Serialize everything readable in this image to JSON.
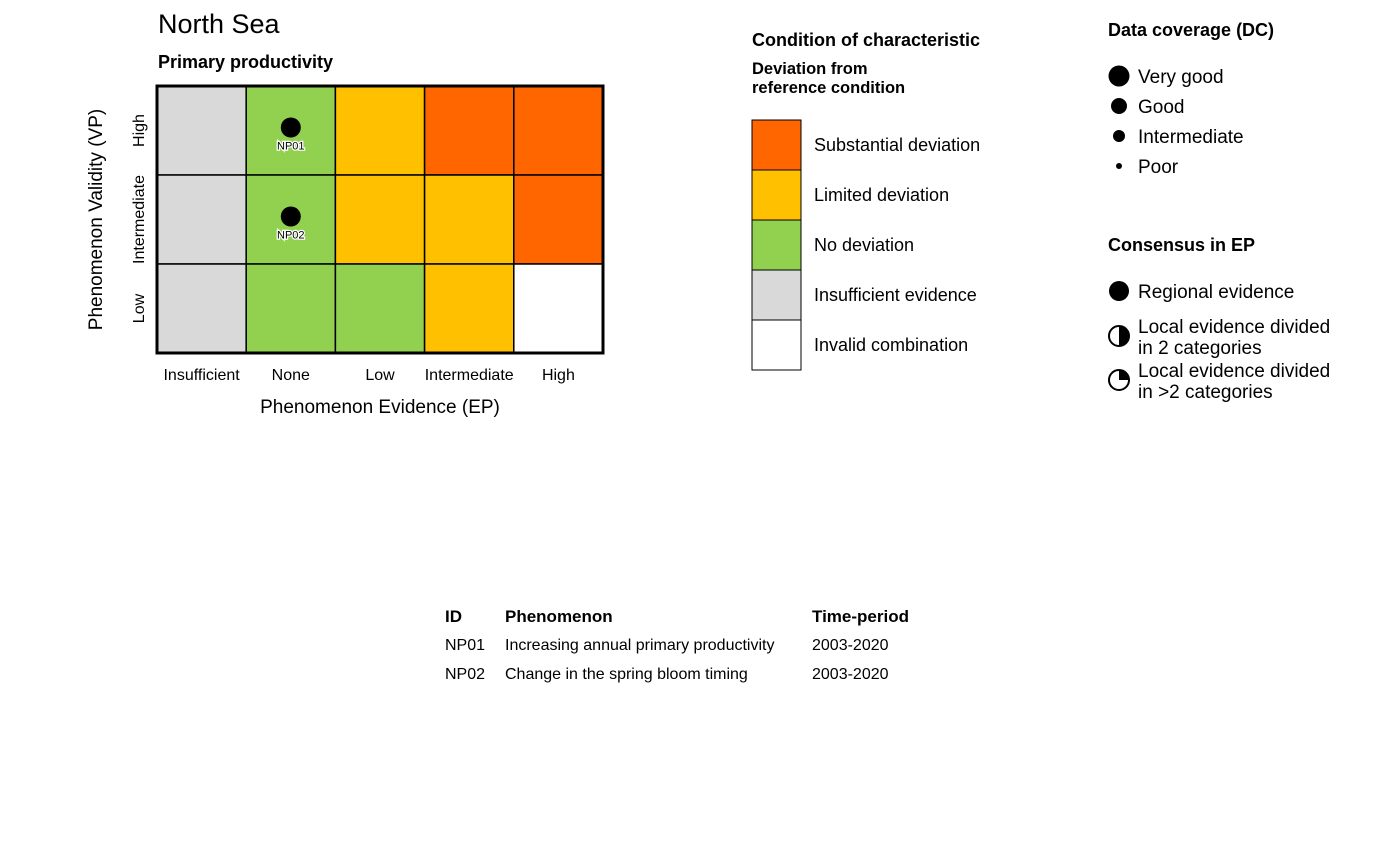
{
  "chart_data": {
    "type": "heatmap",
    "title": "North Sea",
    "subtitle": "Primary productivity",
    "xlabel": "Phenomenon Evidence (EP)",
    "ylabel": "Phenomenon Validity (VP)",
    "x_categories": [
      "Insufficient",
      "None",
      "Low",
      "Intermediate",
      "High"
    ],
    "y_categories": [
      "High",
      "Intermediate",
      "Low"
    ],
    "cells": [
      [
        "Insufficient evidence",
        "No deviation",
        "Limited deviation",
        "Substantial deviation",
        "Substantial deviation"
      ],
      [
        "Insufficient evidence",
        "No deviation",
        "Limited deviation",
        "Limited deviation",
        "Substantial deviation"
      ],
      [
        "Insufficient evidence",
        "No deviation",
        "No deviation",
        "Limited deviation",
        "Invalid combination"
      ]
    ],
    "points": [
      {
        "id": "NP01",
        "ep": "None",
        "vp": "High",
        "data_coverage": "Very good",
        "consensus": "Regional evidence"
      },
      {
        "id": "NP02",
        "ep": "None",
        "vp": "Intermediate",
        "data_coverage": "Very good",
        "consensus": "Regional evidence"
      }
    ],
    "condition_legend": {
      "title": "Condition of characteristic",
      "subtitle_lines": [
        "Deviation from",
        "reference condition"
      ],
      "entries": [
        {
          "label": "Substantial deviation",
          "color": "#FF6600"
        },
        {
          "label": "Limited deviation",
          "color": "#FFC000"
        },
        {
          "label": "No deviation",
          "color": "#92D050"
        },
        {
          "label": "Insufficient evidence",
          "color": "#D9D9D9"
        },
        {
          "label": "Invalid combination",
          "color": "#FFFFFF"
        }
      ]
    },
    "coverage_legend": {
      "title": "Data coverage (DC)",
      "entries": [
        "Very good",
        "Good",
        "Intermediate",
        "Poor"
      ]
    },
    "consensus_legend": {
      "title": "Consensus in EP",
      "entries": [
        {
          "lines": [
            "Regional evidence"
          ],
          "symbol": "full-circle"
        },
        {
          "lines": [
            "Local evidence divided",
            "in 2 categories"
          ],
          "symbol": "half-circle"
        },
        {
          "lines": [
            "Local evidence divided",
            "in >2 categories"
          ],
          "symbol": "quarter-circle"
        }
      ]
    }
  },
  "table": {
    "headers": [
      "ID",
      "Phenomenon",
      "Time-period"
    ],
    "rows": [
      [
        "NP01",
        "Increasing annual primary productivity",
        "2003-2020"
      ],
      [
        "NP02",
        "Change in the spring bloom timing",
        "2003-2020"
      ]
    ]
  }
}
